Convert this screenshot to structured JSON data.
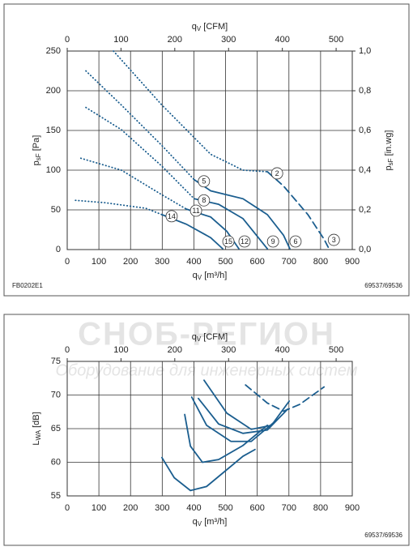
{
  "watermark": {
    "title": "СНОБ-РЕГИОН",
    "subtitle": "Оборудование для инженерных систем"
  },
  "chart_data": [
    {
      "type": "line",
      "color": "#1b5e8f",
      "grid": true,
      "x_label": [
        "q",
        "V",
        " [m³/h]"
      ],
      "x2_label": [
        "q",
        "V",
        " [CFM]"
      ],
      "y_label": [
        "p",
        "sF",
        " [Pa]"
      ],
      "y2_label": [
        "p",
        "sF",
        " [in.wg]"
      ],
      "xlim": [
        0,
        900
      ],
      "xticks": [
        0,
        100,
        200,
        300,
        400,
        500,
        600,
        700,
        800,
        900
      ],
      "x2lim": [
        0,
        530
      ],
      "x2ticks": [
        0,
        100,
        200,
        300,
        400,
        500
      ],
      "ylim": [
        0,
        250
      ],
      "yticks": [
        0,
        50,
        100,
        150,
        200,
        250
      ],
      "y2lim": [
        0,
        1.0
      ],
      "y2ticks": [
        {
          "value": 0,
          "label": "0,0"
        },
        {
          "value": 0.2,
          "label": "0,2"
        },
        {
          "value": 0.4,
          "label": "0,4"
        },
        {
          "value": 0.6,
          "label": "0,6"
        },
        {
          "value": 0.8,
          "label": "0,8"
        },
        {
          "value": 1.0,
          "label": "1,0"
        }
      ],
      "series": [
        {
          "style": "dotted",
          "x": [
            146,
            299,
            453,
            555,
            632
          ],
          "values": [
            250,
            182,
            120,
            100,
            98
          ]
        },
        {
          "style": "dashed",
          "labels": [
            "2",
            "3"
          ],
          "x": [
            632,
            683,
            760,
            811,
            824
          ],
          "values": [
            98,
            80,
            44,
            13,
            3
          ]
        },
        {
          "style": "dotted",
          "x": [
            59,
            171,
            299,
            401
          ],
          "values": [
            225,
            182,
            131,
            88
          ]
        },
        {
          "style": "solid",
          "labels": [
            "5",
            "6"
          ],
          "x": [
            401,
            453,
            555,
            632,
            683,
            703
          ],
          "values": [
            88,
            74,
            64,
            44,
            18,
            1
          ]
        },
        {
          "style": "dotted",
          "x": [
            59,
            171,
            299,
            401
          ],
          "values": [
            179,
            151,
            105,
            64
          ]
        },
        {
          "style": "solid",
          "labels": [
            "8",
            "9"
          ],
          "x": [
            401,
            478,
            555,
            632
          ],
          "values": [
            64,
            57,
            39,
            1
          ]
        },
        {
          "style": "dotted",
          "x": [
            43,
            171,
            299,
            376
          ],
          "values": [
            115,
            100,
            69,
            51
          ]
        },
        {
          "style": "solid",
          "labels": [
            "11",
            "12"
          ],
          "x": [
            376,
            453,
            504,
            542
          ],
          "values": [
            51,
            41,
            23,
            1
          ]
        },
        {
          "style": "dotted",
          "x": [
            26,
            120,
            248,
            299
          ],
          "values": [
            62,
            59,
            52,
            44
          ]
        },
        {
          "style": "solid",
          "labels": [
            "14",
            "15"
          ],
          "x": [
            299,
            376,
            453,
            491
          ],
          "values": [
            44,
            32,
            15,
            1
          ]
        }
      ],
      "code_left": "FB0202E1",
      "code_right": "69537/69536"
    },
    {
      "type": "line",
      "color": "#1b5e8f",
      "grid": true,
      "x_label": [
        "q",
        "V",
        " [m³/h]"
      ],
      "x2_label": [
        "q",
        "V",
        " [CFM]"
      ],
      "y_label": [
        "L",
        "WA",
        " [dB]"
      ],
      "xlim": [
        0,
        900
      ],
      "xticks": [
        0,
        100,
        200,
        300,
        400,
        500,
        600,
        700,
        800,
        900
      ],
      "x2lim": [
        0,
        530
      ],
      "x2ticks": [
        0,
        100,
        200,
        300,
        400,
        500
      ],
      "ylim": [
        55,
        75
      ],
      "yticks": [
        55,
        60,
        65,
        70,
        75
      ],
      "series": [
        {
          "style": "solid",
          "x": [
            299,
            338,
            389,
            440,
            504,
            555,
            593
          ],
          "values": [
            60.7,
            57.7,
            55.8,
            56.4,
            58.9,
            60.9,
            61.9
          ]
        },
        {
          "style": "solid",
          "x": [
            371,
            389,
            427,
            478,
            555,
            632
          ],
          "values": [
            67.1,
            62.4,
            60.0,
            60.4,
            62.5,
            65.5
          ]
        },
        {
          "style": "solid",
          "x": [
            393,
            440,
            517,
            581,
            657
          ],
          "values": [
            69.7,
            65.5,
            63.1,
            63.1,
            66.1
          ]
        },
        {
          "style": "solid",
          "x": [
            414,
            478,
            555,
            632,
            696
          ],
          "values": [
            69.5,
            65.7,
            64.3,
            64.8,
            67.9
          ]
        },
        {
          "style": "solid",
          "x": [
            432,
            504,
            581,
            645,
            701
          ],
          "values": [
            72.2,
            67.3,
            64.9,
            65.5,
            69.1
          ]
        },
        {
          "style": "dashed",
          "x": [
            563,
            632,
            683,
            734,
            811
          ],
          "values": [
            71.5,
            68.8,
            67.6,
            68.6,
            71.2
          ]
        }
      ],
      "code_right": "69537/69536"
    }
  ]
}
